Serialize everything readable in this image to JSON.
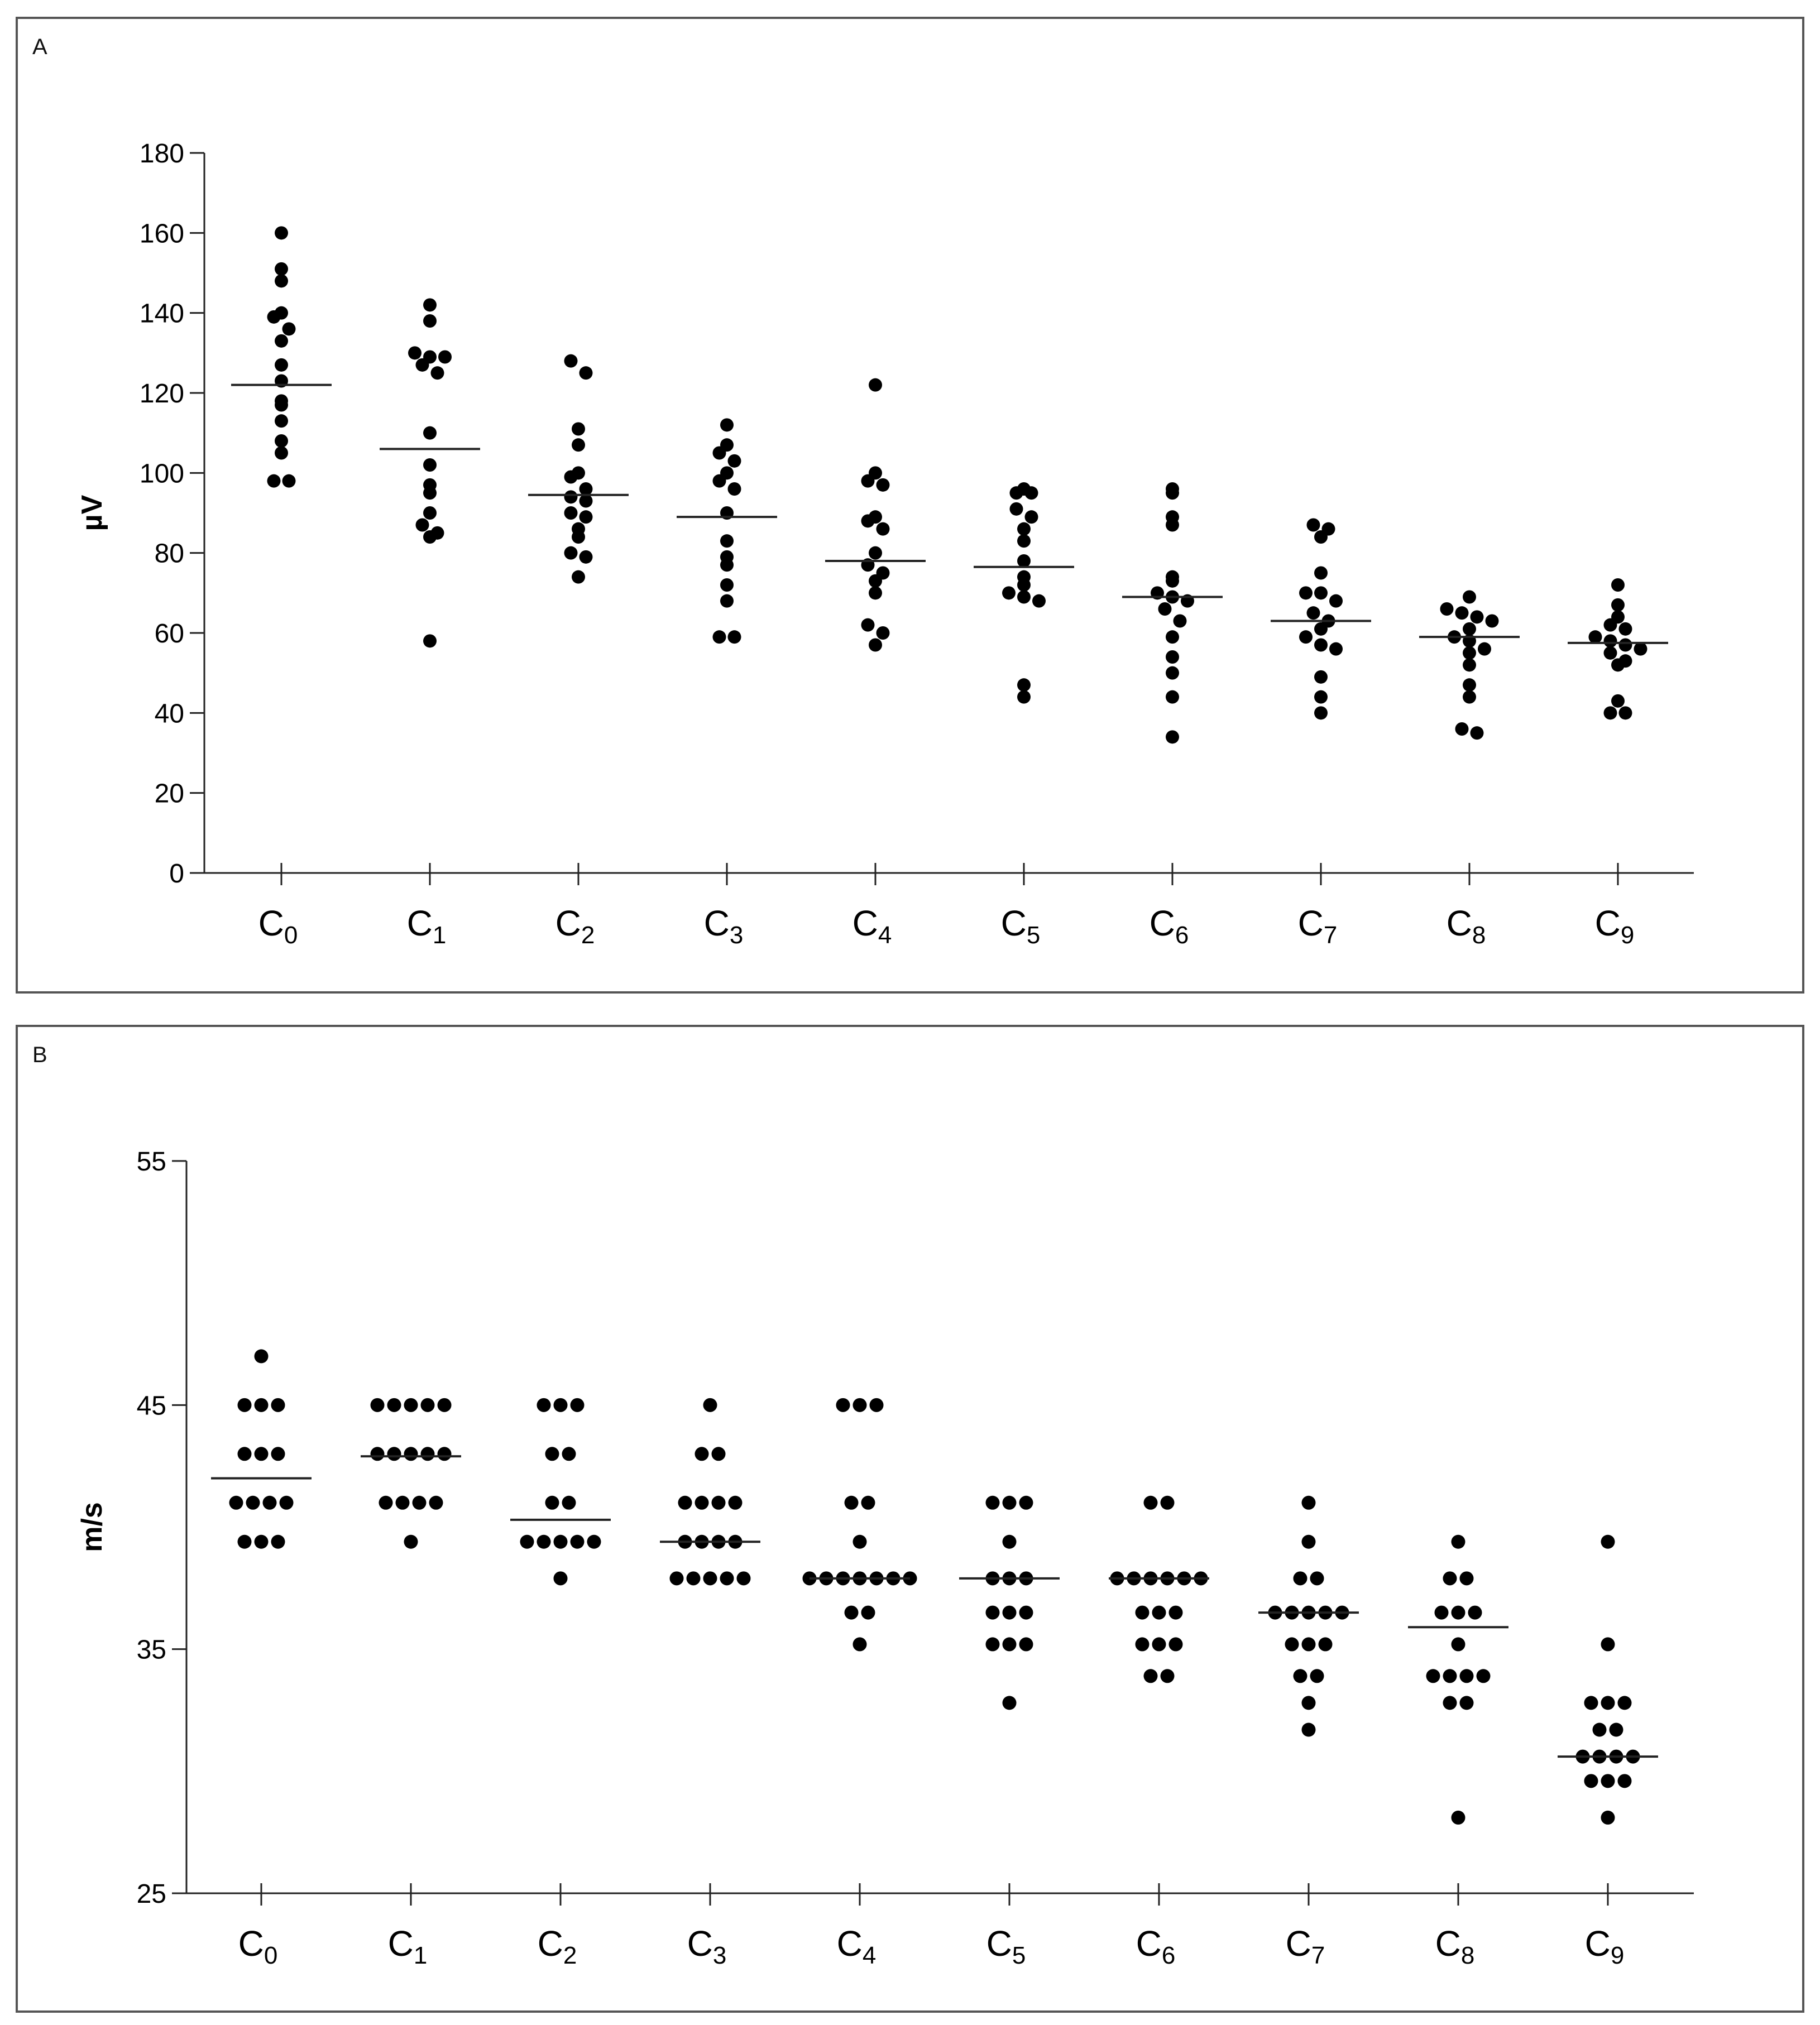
{
  "figure": {
    "panels": [
      {
        "label": "A"
      },
      {
        "label": "B"
      }
    ]
  },
  "chart_data": [
    {
      "type": "scatter",
      "panel": "A",
      "title": "",
      "xlabel": "",
      "ylabel": "µV",
      "ylim": [
        0,
        180
      ],
      "yticks": [
        0,
        20,
        40,
        60,
        80,
        100,
        120,
        140,
        160,
        180
      ],
      "categories": [
        "C0",
        "C1",
        "C2",
        "C3",
        "C4",
        "C5",
        "C6",
        "C7",
        "C8",
        "C9"
      ],
      "category_labels": [
        {
          "base": "C",
          "sub": "0"
        },
        {
          "base": "C",
          "sub": "1"
        },
        {
          "base": "C",
          "sub": "2"
        },
        {
          "base": "C",
          "sub": "3"
        },
        {
          "base": "C",
          "sub": "4"
        },
        {
          "base": "C",
          "sub": "5"
        },
        {
          "base": "C",
          "sub": "6"
        },
        {
          "base": "C",
          "sub": "7"
        },
        {
          "base": "C",
          "sub": "8"
        },
        {
          "base": "C",
          "sub": "9"
        }
      ],
      "values": [
        [
          160,
          151,
          148,
          140,
          139,
          136,
          133,
          127,
          123,
          118,
          117,
          113,
          108,
          105,
          98,
          98
        ],
        [
          142,
          138,
          130,
          129,
          129,
          127,
          125,
          110,
          102,
          97,
          95,
          90,
          87,
          85,
          84,
          58
        ],
        [
          128,
          125,
          111,
          107,
          100,
          99,
          96,
          94,
          93,
          90,
          89,
          86,
          84,
          80,
          79,
          74
        ],
        [
          112,
          107,
          105,
          103,
          100,
          98,
          96,
          90,
          83,
          79,
          77,
          72,
          68,
          59,
          59
        ],
        [
          122,
          100,
          98,
          97,
          89,
          88,
          86,
          80,
          77,
          75,
          73,
          70,
          62,
          60,
          57
        ],
        [
          96,
          95,
          95,
          91,
          89,
          86,
          83,
          78,
          74,
          72,
          70,
          69,
          68,
          47,
          44
        ],
        [
          96,
          95,
          89,
          87,
          74,
          73,
          70,
          69,
          68,
          66,
          63,
          59,
          54,
          50,
          44,
          34
        ],
        [
          87,
          86,
          84,
          75,
          70,
          70,
          68,
          65,
          63,
          61,
          59,
          57,
          56,
          49,
          44,
          40
        ],
        [
          69,
          66,
          65,
          64,
          63,
          61,
          59,
          58,
          56,
          55,
          52,
          47,
          44,
          36,
          35
        ],
        [
          72,
          67,
          64,
          62,
          61,
          59,
          58,
          57,
          56,
          55,
          53,
          52,
          43,
          40,
          40
        ]
      ],
      "means": [
        122,
        106,
        94.5,
        89,
        78,
        76.5,
        69,
        63,
        59,
        57.5
      ],
      "color": "#000000",
      "grid": false
    },
    {
      "type": "scatter",
      "panel": "B",
      "title": "",
      "xlabel": "",
      "ylabel": "m/s",
      "ylim": [
        25,
        55
      ],
      "yticks": [
        25,
        35,
        45,
        55
      ],
      "categories": [
        "C0",
        "C1",
        "C2",
        "C3",
        "C4",
        "C5",
        "C6",
        "C7",
        "C8",
        "C9"
      ],
      "category_labels": [
        {
          "base": "C",
          "sub": "0"
        },
        {
          "base": "C",
          "sub": "1"
        },
        {
          "base": "C",
          "sub": "2"
        },
        {
          "base": "C",
          "sub": "3"
        },
        {
          "base": "C",
          "sub": "4"
        },
        {
          "base": "C",
          "sub": "5"
        },
        {
          "base": "C",
          "sub": "6"
        },
        {
          "base": "C",
          "sub": "7"
        },
        {
          "base": "C",
          "sub": "8"
        },
        {
          "base": "C",
          "sub": "9"
        }
      ],
      "values": [
        [
          47,
          45,
          45,
          45,
          43,
          43,
          43,
          41,
          41,
          41,
          41,
          39.4,
          39.4,
          39.4
        ],
        [
          45,
          45,
          45,
          45,
          45,
          43,
          43,
          43,
          43,
          43,
          41,
          41,
          41,
          41,
          39.4
        ],
        [
          45,
          45,
          45,
          43,
          43,
          41,
          41,
          39.4,
          39.4,
          39.4,
          39.4,
          39.4,
          37.9
        ],
        [
          45,
          43,
          43,
          41,
          41,
          41,
          41,
          39.4,
          39.4,
          39.4,
          39.4,
          37.9,
          37.9,
          37.9,
          37.9,
          37.9
        ],
        [
          45,
          45,
          45,
          41,
          41,
          39.4,
          37.9,
          37.9,
          37.9,
          37.9,
          37.9,
          37.9,
          37.9,
          36.5,
          36.5,
          35.2
        ],
        [
          41,
          41,
          41,
          39.4,
          37.9,
          37.9,
          37.9,
          36.5,
          36.5,
          36.5,
          35.2,
          35.2,
          35.2,
          32.8
        ],
        [
          41,
          41,
          37.9,
          37.9,
          37.9,
          37.9,
          37.9,
          37.9,
          36.5,
          36.5,
          36.5,
          35.2,
          35.2,
          35.2,
          33.9,
          33.9
        ],
        [
          41,
          39.4,
          37.9,
          37.9,
          36.5,
          36.5,
          36.5,
          36.5,
          36.5,
          35.2,
          35.2,
          35.2,
          33.9,
          33.9,
          32.8,
          31.7
        ],
        [
          39.4,
          37.9,
          37.9,
          36.5,
          36.5,
          36.5,
          35.2,
          33.9,
          33.9,
          33.9,
          33.9,
          32.8,
          32.8,
          28.1
        ],
        [
          39.4,
          35.2,
          32.8,
          32.8,
          32.8,
          31.7,
          31.7,
          30.6,
          30.6,
          30.6,
          30.6,
          29.6,
          29.6,
          29.6,
          28.1
        ]
      ],
      "means": [
        42,
        42.9,
        40.3,
        39.4,
        37.9,
        37.9,
        37.9,
        36.5,
        35.9,
        30.6
      ],
      "color": "#000000",
      "grid": false
    }
  ]
}
